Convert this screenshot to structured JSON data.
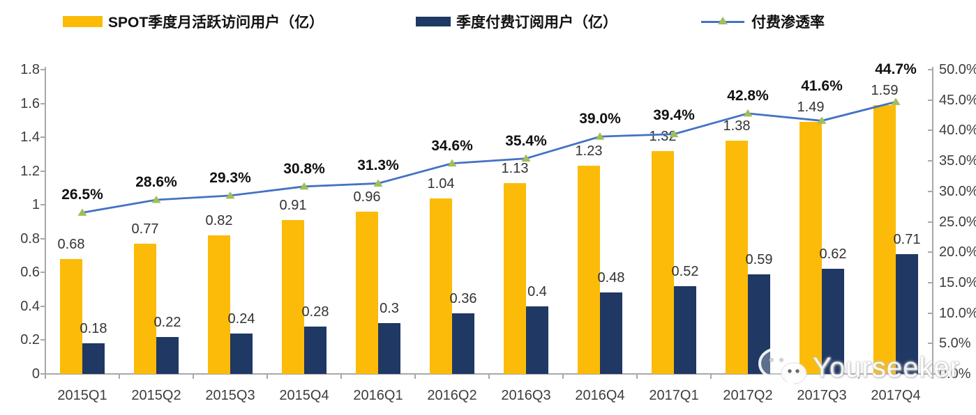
{
  "chart_data": {
    "type": "bar",
    "subtype": "grouped-bars-with-line",
    "categories": [
      "2015Q1",
      "2015Q2",
      "2015Q3",
      "2015Q4",
      "2016Q1",
      "2016Q2",
      "2016Q3",
      "2016Q4",
      "2017Q1",
      "2017Q2",
      "2017Q3",
      "2017Q4"
    ],
    "series": [
      {
        "name": "SPOT季度月活跃访问用户（亿）",
        "type": "bar",
        "axis": "left",
        "color": "#FBBB08",
        "values": [
          0.68,
          0.77,
          0.82,
          0.91,
          0.96,
          1.04,
          1.13,
          1.23,
          1.32,
          1.38,
          1.49,
          1.59
        ],
        "labels": [
          "0.68",
          "0.77",
          "0.82",
          "0.91",
          "0.96",
          "1.04",
          "1.13",
          "1.23",
          "1.32",
          "1.38",
          "1.49",
          "1.59"
        ]
      },
      {
        "name": "季度付费订阅用户（亿）",
        "type": "bar",
        "axis": "left",
        "color": "#1F3864",
        "values": [
          0.18,
          0.22,
          0.24,
          0.28,
          0.3,
          0.36,
          0.4,
          0.48,
          0.52,
          0.59,
          0.62,
          0.71
        ],
        "labels": [
          "0.18",
          "0.22",
          "0.24",
          "0.28",
          "0.3",
          "0.36",
          "0.4",
          "0.48",
          "0.52",
          "0.59",
          "0.62",
          "0.71"
        ]
      },
      {
        "name": "付费渗透率",
        "type": "line",
        "axis": "right",
        "color": "#4472C4",
        "marker": "triangle",
        "marker_color": "#A0BE59",
        "values": [
          26.5,
          28.6,
          29.3,
          30.8,
          31.3,
          34.6,
          35.4,
          39.0,
          39.4,
          42.8,
          41.6,
          44.7
        ],
        "labels": [
          "26.5%",
          "28.6%",
          "29.3%",
          "30.8%",
          "31.3%",
          "34.6%",
          "35.4%",
          "39.0%",
          "39.4%",
          "42.8%",
          "41.6%",
          "44.7%"
        ]
      }
    ],
    "left_axis": {
      "min": 0,
      "max": 1.8,
      "ticks": [
        "1.8",
        "1.6",
        "1.4",
        "1.2",
        "1",
        "0.8",
        "0.6",
        "0.4",
        "0.2",
        "0"
      ]
    },
    "right_axis": {
      "min": 0,
      "max": 50,
      "ticks": [
        "50.0%",
        "45.0%",
        "40.0%",
        "35.0%",
        "30.0%",
        "25.0%",
        "20.0%",
        "15.0%",
        "10.0%",
        "5.0%",
        "0.0%"
      ]
    },
    "grid": false,
    "legend_position": "top",
    "axis_color": "#A8A8A8"
  },
  "watermark": {
    "text": "Yourseeker",
    "icon": "wechat-icon"
  }
}
